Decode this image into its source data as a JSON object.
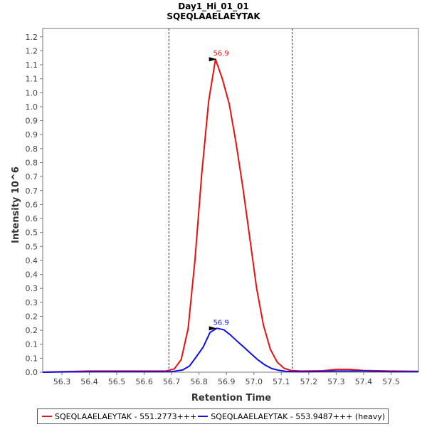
{
  "chart_data": {
    "type": "line",
    "title": "Day1_Hi_01_01",
    "subtitle": "SQEQLAAELAEYTAK",
    "xlabel": "Retention Time",
    "ylabel": "Intensity 10^6",
    "xlim": [
      56.23,
      57.6
    ],
    "ylim": [
      0,
      1.23
    ],
    "xticks": [
      56.3,
      56.4,
      56.5,
      56.6,
      56.7,
      56.8,
      56.9,
      57.0,
      57.1,
      57.2,
      57.3,
      57.4,
      57.5
    ],
    "xtick_labels": [
      "56.3",
      "56.4",
      "56.5",
      "56.6",
      "56.7",
      "56.8",
      "56.9",
      "57.0",
      "57.1",
      "57.2",
      "57.3",
      "57.4",
      "57.5"
    ],
    "yticks": [
      0.0,
      0.05,
      0.1,
      0.15,
      0.2,
      0.25,
      0.3,
      0.35,
      0.4,
      0.45,
      0.5,
      0.55,
      0.6,
      0.65,
      0.7,
      0.75,
      0.8,
      0.85,
      0.9,
      0.95,
      1.0,
      1.05,
      1.1,
      1.15,
      1.2
    ],
    "ytick_labels": [
      "0.0",
      "0.1",
      "0.1",
      "0.2",
      "0.2",
      "0.3",
      "0.3",
      "0.4",
      "0.4",
      "0.5",
      "0.5",
      "0.6",
      "0.6",
      "0.7",
      "0.7",
      "0.8",
      "0.8",
      "0.9",
      "0.9",
      "1.0",
      "1.0",
      "1.1",
      "1.1",
      "1.2",
      "1.2"
    ],
    "integration_bounds": [
      56.69,
      57.14
    ],
    "series": [
      {
        "name": "SQEQLAAELAEYTAK - 551.2773+++",
        "color": "#e81010",
        "x": [
          56.23,
          56.3,
          56.4,
          56.5,
          56.6,
          56.68,
          56.71,
          56.735,
          56.76,
          56.785,
          56.81,
          56.835,
          56.86,
          56.885,
          56.91,
          56.935,
          56.96,
          56.985,
          57.01,
          57.035,
          57.06,
          57.085,
          57.11,
          57.135,
          57.17,
          57.25,
          57.3,
          57.35,
          57.4,
          57.5,
          57.6
        ],
        "y": [
          0.0,
          0.002,
          0.004,
          0.004,
          0.004,
          0.004,
          0.012,
          0.045,
          0.155,
          0.4,
          0.71,
          0.97,
          1.12,
          1.05,
          0.96,
          0.82,
          0.66,
          0.48,
          0.3,
          0.168,
          0.082,
          0.036,
          0.014,
          0.006,
          0.004,
          0.005,
          0.01,
          0.01,
          0.006,
          0.004,
          0.003
        ],
        "peak": {
          "x": 56.87,
          "y": 1.12,
          "label": "56.9"
        }
      },
      {
        "name": "SQEQLAAELAEYTAK - 553.9487+++ (heavy)",
        "color": "#1010e0",
        "x": [
          56.23,
          56.3,
          56.4,
          56.5,
          56.6,
          56.7,
          56.74,
          56.765,
          56.79,
          56.815,
          56.84,
          56.865,
          56.89,
          56.915,
          56.94,
          56.965,
          56.99,
          57.015,
          57.04,
          57.065,
          57.09,
          57.115,
          57.15,
          57.2,
          57.3,
          57.4,
          57.5,
          57.6
        ],
        "y": [
          0.0,
          0.001,
          0.002,
          0.002,
          0.002,
          0.002,
          0.008,
          0.022,
          0.055,
          0.09,
          0.142,
          0.157,
          0.152,
          0.133,
          0.11,
          0.088,
          0.066,
          0.044,
          0.026,
          0.013,
          0.007,
          0.003,
          0.002,
          0.002,
          0.004,
          0.004,
          0.002,
          0.002
        ],
        "peak": {
          "x": 56.87,
          "y": 0.157,
          "label": "56.9"
        }
      }
    ],
    "legend": [
      "SQEQLAAELAEYTAK - 551.2773+++",
      "SQEQLAAELAEYTAK - 553.9487+++ (heavy)"
    ],
    "legend_position": "bottom"
  }
}
